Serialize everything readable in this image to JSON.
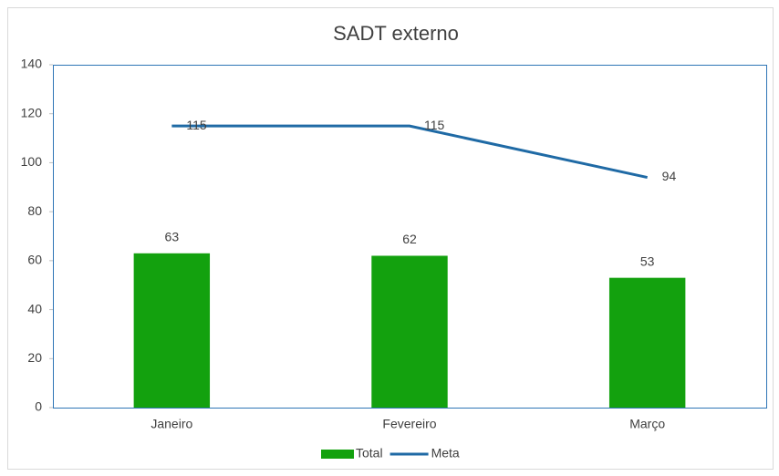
{
  "chart_data": {
    "type": "bar",
    "title": "SADT externo",
    "categories": [
      "Janeiro",
      "Fevereiro",
      "Março"
    ],
    "series": [
      {
        "name": "Total",
        "type": "bar",
        "color": "#13a10e",
        "values": [
          63,
          62,
          53
        ]
      },
      {
        "name": "Meta",
        "type": "line",
        "color": "#1f6aa5",
        "values": [
          115,
          115,
          94
        ]
      }
    ],
    "ylim": [
      0,
      140
    ],
    "yticks": [
      0,
      20,
      40,
      60,
      80,
      100,
      120,
      140
    ],
    "grid": false,
    "legend": "bottom"
  }
}
